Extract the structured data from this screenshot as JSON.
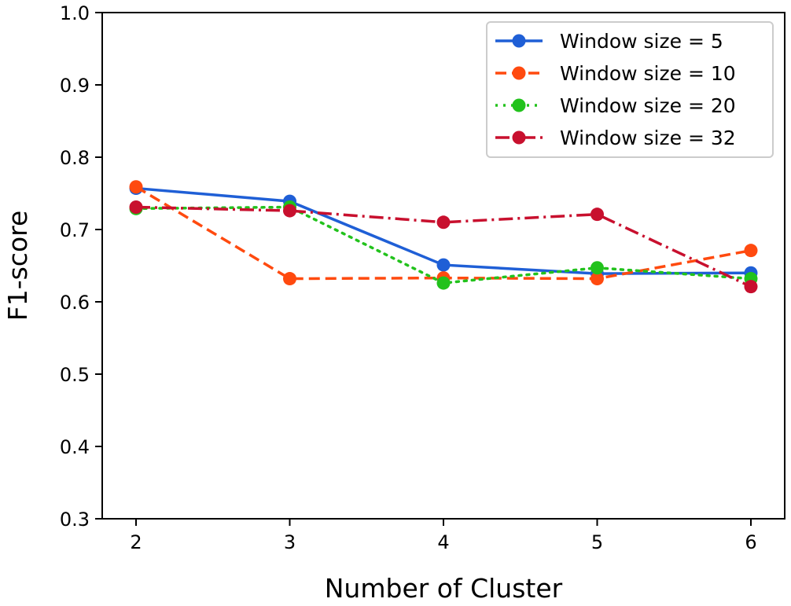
{
  "chart_data": {
    "type": "line",
    "title": "",
    "xlabel": "Number of Cluster",
    "ylabel": "F1-score",
    "x": [
      2,
      3,
      4,
      5,
      6
    ],
    "xticks": [
      "2",
      "3",
      "4",
      "5",
      "6"
    ],
    "yticks": [
      "0.3",
      "0.4",
      "0.5",
      "0.6",
      "0.7",
      "0.8",
      "0.9",
      "1.0"
    ],
    "xlim": [
      1.78,
      6.22
    ],
    "ylim": [
      0.3,
      1.0
    ],
    "grid": false,
    "legend_placement": "top-right",
    "series": [
      {
        "name": "Window size = 5",
        "color": "#1f5fd6",
        "linestyle": "solid",
        "values": [
          0.757,
          0.739,
          0.651,
          0.639,
          0.64
        ]
      },
      {
        "name": "Window size = 10",
        "color": "#ff4a0f",
        "linestyle": "dashed",
        "values": [
          0.759,
          0.632,
          0.633,
          0.632,
          0.671
        ]
      },
      {
        "name": "Window size = 20",
        "color": "#22c21c",
        "linestyle": "dotted",
        "values": [
          0.729,
          0.731,
          0.626,
          0.647,
          0.632
        ]
      },
      {
        "name": "Window size = 32",
        "color": "#c8102e",
        "linestyle": "dashdot",
        "values": [
          0.731,
          0.726,
          0.71,
          0.721,
          0.621
        ]
      }
    ]
  }
}
